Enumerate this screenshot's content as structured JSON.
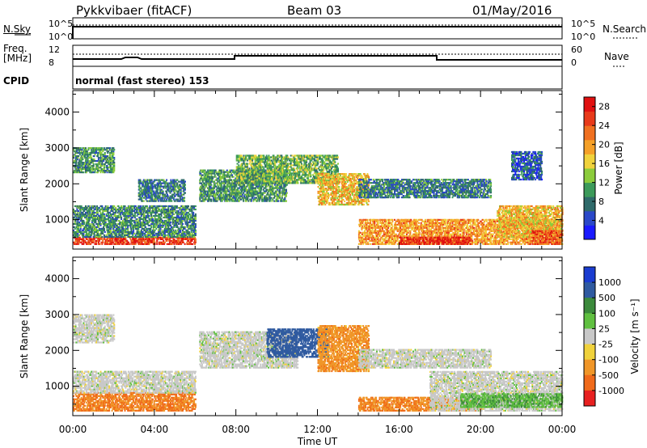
{
  "header": {
    "radar": "Pykkvibaer (fitACF)",
    "beam": "Beam 03",
    "date": "01/May/2016"
  },
  "status_panels": {
    "nsky_label": "N.Sky",
    "nsearch_label": "N.Search",
    "freq_label_line1": "Freq.",
    "freq_label_line2": "[MHz]",
    "nave_label": "Nave",
    "cpid_label": "CPID",
    "cpid_text": "normal (fast stereo) 153",
    "noise_ticks": [
      "10^5",
      "10^0"
    ],
    "freq_ticks": [
      "12",
      "8"
    ],
    "nave_ticks": [
      "60",
      "0"
    ]
  },
  "chart_data": [
    {
      "type": "heatmap",
      "title": "",
      "xlabel": "Time UT",
      "ylabel": "Slant Range [km]",
      "x_ticks": [
        "00:00",
        "04:00",
        "08:00",
        "12:00",
        "16:00",
        "20:00",
        "00:00"
      ],
      "xlim_hours": [
        0,
        24
      ],
      "y_ticks": [
        1000,
        2000,
        3000,
        4000
      ],
      "ylim": [
        180,
        4600
      ],
      "colorbar": {
        "label": "Power [dB]",
        "ticks": [
          4,
          8,
          12,
          16,
          20,
          24,
          28
        ],
        "range": [
          0,
          30
        ],
        "colors": [
          "#1a1aff",
          "#2a48c8",
          "#2f6a6a",
          "#3c9a5a",
          "#8ccc3c",
          "#f0d23c",
          "#f5a028",
          "#f07020",
          "#e83a1a",
          "#e01010"
        ]
      },
      "regions": [
        {
          "t": [
            0.0,
            6.0
          ],
          "r": [
            300,
            500
          ],
          "v": 26
        },
        {
          "t": [
            0.0,
            6.0
          ],
          "r": [
            500,
            1400
          ],
          "v": 9
        },
        {
          "t": [
            0.0,
            2.0
          ],
          "r": [
            2300,
            3000
          ],
          "v": 10
        },
        {
          "t": [
            3.2,
            5.5
          ],
          "r": [
            1500,
            2100
          ],
          "v": 8
        },
        {
          "t": [
            6.2,
            10.5
          ],
          "r": [
            1500,
            2400
          ],
          "v": 10
        },
        {
          "t": [
            8.0,
            13.0
          ],
          "r": [
            2000,
            2800
          ],
          "v": 12
        },
        {
          "t": [
            12.0,
            14.5
          ],
          "r": [
            1400,
            2300
          ],
          "v": 18
        },
        {
          "t": [
            14.0,
            20.5
          ],
          "r": [
            1600,
            2100
          ],
          "v": 8
        },
        {
          "t": [
            14.0,
            24.0
          ],
          "r": [
            300,
            1000
          ],
          "v": 20
        },
        {
          "t": [
            16.0,
            19.5
          ],
          "r": [
            300,
            500
          ],
          "v": 27
        },
        {
          "t": [
            20.8,
            24.0
          ],
          "r": [
            500,
            1400
          ],
          "v": 18
        },
        {
          "t": [
            22.5,
            24.0
          ],
          "r": [
            300,
            700
          ],
          "v": 24
        },
        {
          "t": [
            21.5,
            23.0
          ],
          "r": [
            2100,
            2900
          ],
          "v": 6
        }
      ]
    },
    {
      "type": "heatmap",
      "title": "",
      "xlabel": "Time UT",
      "ylabel": "Slant Range [km]",
      "x_ticks": [
        "00:00",
        "04:00",
        "08:00",
        "12:00",
        "16:00",
        "20:00",
        "00:00"
      ],
      "xlim_hours": [
        0,
        24
      ],
      "y_ticks": [
        1000,
        2000,
        3000,
        4000
      ],
      "ylim": [
        180,
        4600
      ],
      "colorbar": {
        "label": "Velocity [m s⁻¹]",
        "ticks": [
          "1000",
          "500",
          "100",
          "25",
          "-25",
          "-100",
          "-500",
          "-1000"
        ],
        "colors": [
          "#1a3cd0",
          "#2f5aa0",
          "#3c8a3c",
          "#60c040",
          "#c8c8c8",
          "#f0d23c",
          "#f09628",
          "#f06a1a",
          "#e82020"
        ]
      },
      "regions": [
        {
          "t": [
            0.0,
            6.0
          ],
          "r": [
            300,
            800
          ],
          "v": -300
        },
        {
          "t": [
            0.0,
            6.0
          ],
          "r": [
            800,
            1400
          ],
          "v": 0
        },
        {
          "t": [
            0.0,
            2.0
          ],
          "r": [
            2200,
            3000
          ],
          "v": 0
        },
        {
          "t": [
            6.2,
            11.0
          ],
          "r": [
            1500,
            2500
          ],
          "v": 0
        },
        {
          "t": [
            9.5,
            12.5
          ],
          "r": [
            1800,
            2600
          ],
          "v": 600
        },
        {
          "t": [
            12.0,
            14.5
          ],
          "r": [
            1400,
            2700
          ],
          "v": -200
        },
        {
          "t": [
            14.0,
            20.5
          ],
          "r": [
            1500,
            2000
          ],
          "v": 0
        },
        {
          "t": [
            14.0,
            20.0
          ],
          "r": [
            300,
            700
          ],
          "v": -250
        },
        {
          "t": [
            17.5,
            24.0
          ],
          "r": [
            300,
            1400
          ],
          "v": 0
        },
        {
          "t": [
            19.0,
            24.0
          ],
          "r": [
            400,
            800
          ],
          "v": 50
        }
      ]
    }
  ]
}
